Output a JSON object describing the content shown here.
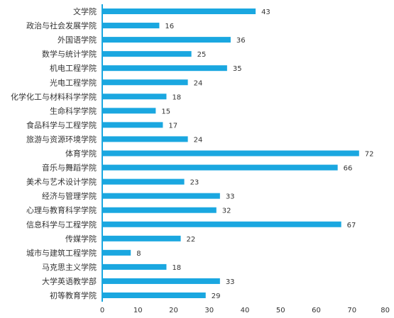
{
  "chart_data": {
    "type": "bar",
    "orientation": "horizontal",
    "categories": [
      "文学院",
      "政治与社会发展学院",
      "外国语学院",
      "数学与统计学院",
      "机电工程学院",
      "光电工程学院",
      "化学化工与材料科学学院",
      "生命科学学院",
      "食品科学与工程学院",
      "旅游与资源环境学院",
      "体育学院",
      "音乐与舞蹈学院",
      "美术与艺术设计学院",
      "经济与管理学院",
      "心理与教育科学学院",
      "信息科学与工程学院",
      "传媒学院",
      "城市与建筑工程学院",
      "马克思主义学院",
      "大学英语教学部",
      "初等教育学院"
    ],
    "values": [
      43,
      16,
      36,
      25,
      35,
      24,
      18,
      15,
      17,
      24,
      72,
      66,
      23,
      33,
      32,
      67,
      22,
      8,
      18,
      33,
      29
    ],
    "xlim": [
      0,
      80
    ],
    "xticks": [
      0,
      10,
      20,
      30,
      40,
      50,
      60,
      70,
      80
    ],
    "bar_color": "#1aa7e0",
    "axis_color": "#1aa7e0",
    "grid": false,
    "data_labels": true
  }
}
